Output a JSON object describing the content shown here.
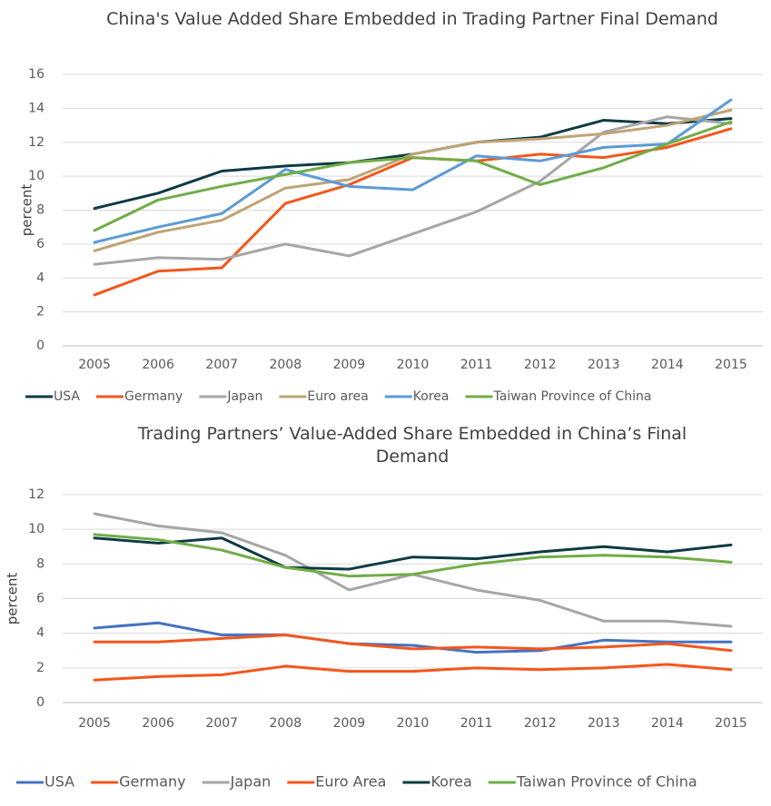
{
  "chart_data": [
    {
      "type": "line",
      "title": "China's Value Added Share Embedded in Trading Partner Final Demand",
      "y_label": "percent",
      "categories": [
        "2005",
        "2006",
        "2007",
        "2008",
        "2009",
        "2010",
        "2011",
        "2012",
        "2013",
        "2014",
        "2015"
      ],
      "ylim": [
        0,
        16
      ],
      "yticks": [
        0,
        2,
        4,
        6,
        8,
        10,
        12,
        14,
        16
      ],
      "grid": true,
      "legend": "bottom",
      "series": [
        {
          "name": "USA",
          "color": "#0e3b43",
          "values": [
            8.1,
            9.0,
            10.3,
            10.6,
            10.8,
            11.3,
            12.0,
            12.3,
            13.3,
            13.1,
            13.4
          ]
        },
        {
          "name": "Germany",
          "color": "#f4561c",
          "values": [
            3.0,
            4.4,
            4.6,
            8.4,
            9.5,
            11.1,
            10.9,
            11.3,
            11.1,
            11.7,
            12.8
          ]
        },
        {
          "name": "Japan",
          "color": "#a6a6a6",
          "values": [
            4.8,
            5.2,
            5.1,
            6.0,
            5.3,
            6.6,
            7.9,
            9.7,
            12.6,
            13.5,
            13.1
          ]
        },
        {
          "name": "Euro area",
          "color": "#bfa474",
          "values": [
            5.6,
            6.7,
            7.4,
            9.3,
            9.8,
            11.3,
            12.0,
            12.2,
            12.5,
            13.0,
            13.9
          ]
        },
        {
          "name": "Korea",
          "color": "#5b9bd5",
          "values": [
            6.1,
            7.0,
            7.8,
            10.4,
            9.4,
            9.2,
            11.2,
            10.9,
            11.7,
            11.9,
            14.5
          ]
        },
        {
          "name": "Taiwan Province of China",
          "color": "#70ad47",
          "values": [
            6.8,
            8.6,
            9.4,
            10.1,
            10.8,
            11.1,
            10.9,
            9.5,
            10.5,
            11.9,
            13.2
          ]
        }
      ]
    },
    {
      "type": "line",
      "title": "Trading Partners’ Value-Added Share Embedded in China’s Final Demand",
      "y_label": "percent",
      "categories": [
        "2005",
        "2006",
        "2007",
        "2008",
        "2009",
        "2010",
        "2011",
        "2012",
        "2013",
        "2014",
        "2015"
      ],
      "ylim": [
        0,
        12
      ],
      "yticks": [
        0,
        2,
        4,
        6,
        8,
        10,
        12
      ],
      "grid": true,
      "legend": "bottom",
      "series": [
        {
          "name": "USA",
          "color": "#4472c4",
          "values": [
            4.3,
            4.6,
            3.9,
            3.9,
            3.4,
            3.3,
            2.9,
            3.0,
            3.6,
            3.5,
            3.5
          ]
        },
        {
          "name": "Germany",
          "color": "#f4561c",
          "values": [
            3.5,
            3.5,
            3.7,
            3.9,
            3.4,
            3.1,
            3.2,
            3.1,
            3.2,
            3.4,
            3.0
          ]
        },
        {
          "name": "Japan",
          "color": "#a6a6a6",
          "values": [
            10.9,
            10.2,
            9.8,
            8.5,
            6.5,
            7.4,
            6.5,
            5.9,
            4.7,
            4.7,
            4.4
          ]
        },
        {
          "name": "Euro Area",
          "color": "#f4561c",
          "values": [
            1.3,
            1.5,
            1.6,
            2.1,
            1.8,
            1.8,
            2.0,
            1.9,
            2.0,
            2.2,
            1.9
          ]
        },
        {
          "name": "Korea",
          "color": "#0e3b43",
          "values": [
            9.5,
            9.2,
            9.5,
            7.8,
            7.7,
            8.4,
            8.3,
            8.7,
            9.0,
            8.7,
            9.1
          ]
        },
        {
          "name": "Taiwan Province of China",
          "color": "#70ad47",
          "values": [
            9.7,
            9.4,
            8.8,
            7.8,
            7.3,
            7.4,
            8.0,
            8.4,
            8.5,
            8.4,
            8.1
          ]
        }
      ]
    }
  ]
}
